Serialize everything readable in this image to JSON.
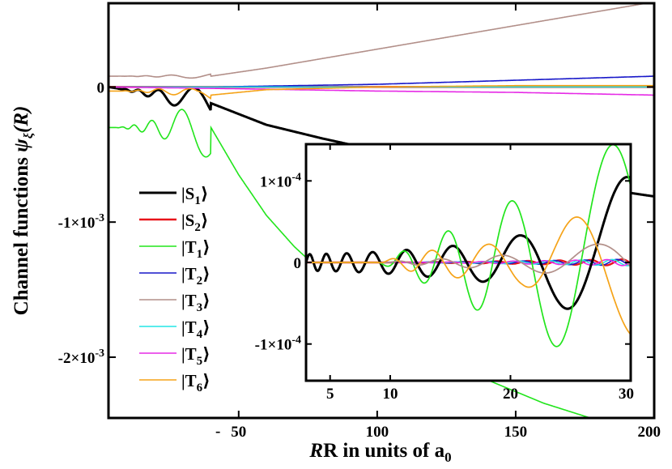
{
  "chart_data": [
    {
      "id": "main",
      "type": "line",
      "xlabel_main": "R in units of a",
      "xlabel_sub": "0",
      "ylabel_main": "Channel functions ",
      "ylabel_sym": "ψ",
      "ylabel_sub": "ξ",
      "ylabel_arg": "(R)",
      "xlim": [
        3,
        200
      ],
      "ylim": [
        -0.00245,
        0.00062
      ],
      "x_ticks": [
        {
          "value": 50,
          "label": "50"
        },
        {
          "value": 100,
          "label": "100"
        },
        {
          "value": 150,
          "label": "150"
        },
        {
          "value": 200,
          "label": "200"
        }
      ],
      "stray_mark": "-",
      "y_ticks": [
        {
          "value": 0,
          "label": "0"
        },
        {
          "value": -0.001,
          "label": "-1×10",
          "exp": "-3"
        },
        {
          "value": -0.002,
          "label": "-2×10",
          "exp": "-3"
        }
      ],
      "series": [
        {
          "name": "S",
          "sub": "1",
          "color": "#000000",
          "x": [
            3,
            40,
            60,
            80,
            100,
            120,
            140,
            160,
            180,
            200
          ],
          "y": [
            0,
            -0.00012,
            -0.00028,
            -0.00038,
            -0.00047,
            -0.00055,
            -0.00062,
            -0.00069,
            -0.00075,
            -0.00081
          ]
        },
        {
          "name": "S",
          "sub": "2",
          "color": "#e8141a",
          "x": [
            3,
            200
          ],
          "y": [
            0,
            0
          ]
        },
        {
          "name": "T",
          "sub": "1",
          "color": "#22e51c",
          "x": [
            40,
            50,
            60,
            70,
            80,
            90,
            100,
            110,
            120,
            140,
            160,
            180,
            200
          ],
          "y": [
            -0.0003,
            -0.00065,
            -0.00095,
            -0.00118,
            -0.00137,
            -0.00153,
            -0.00168,
            -0.00182,
            -0.00195,
            -0.00217,
            -0.00234,
            -0.00247,
            -0.0026
          ]
        },
        {
          "name": "T",
          "sub": "2",
          "color": "#1717c9",
          "x": [
            3,
            40,
            100,
            150,
            200
          ],
          "y": [
            0,
            0,
            2e-05,
            5e-05,
            8e-05
          ]
        },
        {
          "name": "T",
          "sub": "3",
          "color": "#b28f89",
          "x": [
            40,
            60,
            80,
            100,
            120,
            140,
            160,
            180,
            200
          ],
          "y": [
            8e-05,
            0.00014,
            0.00021,
            0.00028,
            0.00035,
            0.00042,
            0.00049,
            0.00056,
            0.00063
          ]
        },
        {
          "name": "T",
          "sub": "4",
          "color": "#22e6e6",
          "x": [
            3,
            200
          ],
          "y": [
            0,
            0
          ]
        },
        {
          "name": "T",
          "sub": "5",
          "color": "#e62be6",
          "x": [
            3,
            40,
            100,
            150,
            200
          ],
          "y": [
            0,
            -1e-05,
            -3e-05,
            -4e-05,
            -6e-05
          ]
        },
        {
          "name": "T",
          "sub": "6",
          "color": "#f5a318",
          "x": [
            30,
            35,
            40,
            60,
            100,
            150,
            200
          ],
          "y": [
            -3e-05,
            -7e-05,
            -6e-05,
            -2e-05,
            0,
            1e-05,
            1e-05
          ]
        }
      ]
    },
    {
      "id": "inset",
      "type": "line",
      "xlim": [
        3,
        30
      ],
      "ylim": [
        -0.000145,
        0.000145
      ],
      "x_ticks": [
        {
          "value": 5,
          "label": "5"
        },
        {
          "value": 10,
          "label": "10"
        },
        {
          "value": 20,
          "label": "20"
        },
        {
          "value": 30,
          "label": "30"
        }
      ],
      "y_ticks": [
        {
          "value": 0.0001,
          "label": "1×10",
          "exp": "-4"
        },
        {
          "value": 0,
          "label": "0"
        },
        {
          "value": -0.0001,
          "label": "-1×10",
          "exp": "-4"
        }
      ],
      "series": [
        {
          "name": "S",
          "sub": "1",
          "amplitude": [
            1e-05,
            1.1e-05,
            1.3e-05,
            1.6e-05,
            2e-05,
            2.4e-05,
            3.4e-05,
            5.2e-05,
            7.5e-05,
            0.00011
          ],
          "wavelength": 2.6
        },
        {
          "name": "T",
          "sub": "1",
          "amplitude": [
            0,
            0,
            0,
            2e-05,
            4e-05,
            6.5e-05,
            8e-05,
            0.000105,
            0.00013,
            0.00016
          ],
          "wavelength": 2.6
        },
        {
          "name": "T",
          "sub": "3",
          "amplitude": [
            0,
            0,
            0,
            3e-06,
            5e-06,
            8e-06,
            1e-05,
            1.5e-05,
            2.2e-05,
            3e-05
          ],
          "wavelength": 2.6
        },
        {
          "name": "T",
          "sub": "6",
          "amplitude": [
            0,
            0,
            0,
            1.2e-05,
            1.8e-05,
            2.2e-05,
            2.8e-05,
            4.5e-05,
            6.8e-05,
            9e-05
          ],
          "wavelength": 2.6
        }
      ]
    }
  ]
}
